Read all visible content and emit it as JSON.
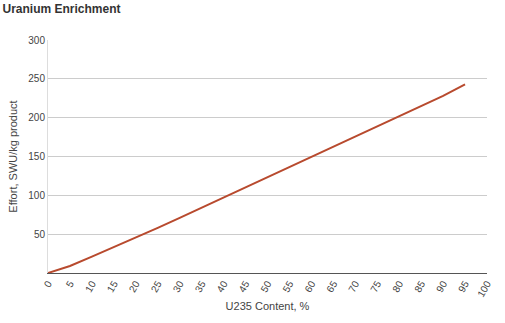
{
  "chart_data": {
    "type": "line",
    "title": "Uranium Enrichment",
    "x_label": "U235 Content, %",
    "y_label": "Effort, SWU/kg product",
    "x": [
      0,
      5,
      10,
      15,
      20,
      25,
      30,
      35,
      40,
      45,
      50,
      55,
      60,
      65,
      70,
      75,
      80,
      85,
      90,
      95
    ],
    "values": [
      0,
      9,
      21,
      33,
      46,
      58,
      71,
      84,
      97,
      110,
      123,
      136,
      149,
      162,
      175,
      188,
      201,
      215,
      228,
      243
    ],
    "color": "#b84a2e",
    "xlim": [
      0,
      100
    ],
    "xticks": [
      0,
      5,
      10,
      15,
      20,
      25,
      30,
      35,
      40,
      45,
      50,
      55,
      60,
      65,
      70,
      75,
      80,
      85,
      90,
      95,
      100
    ],
    "ylim": [
      0,
      300
    ],
    "yticks": [
      50,
      100,
      150,
      200,
      250,
      300
    ],
    "grid": true
  }
}
